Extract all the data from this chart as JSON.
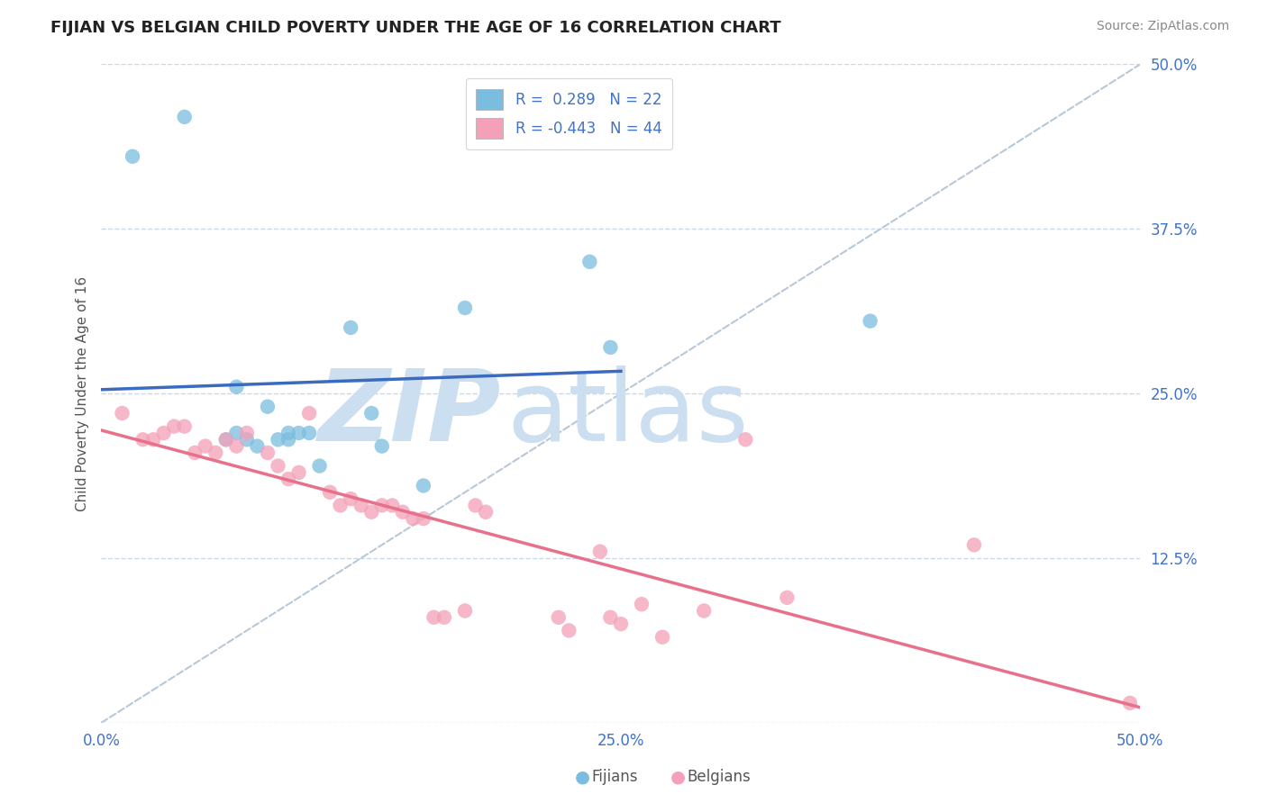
{
  "title": "FIJIAN VS BELGIAN CHILD POVERTY UNDER THE AGE OF 16 CORRELATION CHART",
  "source": "Source: ZipAtlas.com",
  "ylabel": "Child Poverty Under the Age of 16",
  "xlim": [
    0.0,
    0.5
  ],
  "ylim": [
    0.0,
    0.5
  ],
  "fijian_color": "#7bbde0",
  "belgian_color": "#f4a0b8",
  "fijian_line_color": "#3a6bbf",
  "belgian_line_color": "#e8708a",
  "dashed_line_color": "#b8c8d8",
  "watermark_zip_color": "#ccdff0",
  "watermark_atlas_color": "#ccdff0",
  "background_color": "#ffffff",
  "grid_color": "#c8d8e8",
  "tick_color": "#4472c4",
  "title_color": "#222222",
  "ylabel_color": "#555555",
  "source_color": "#888888",
  "legend_text_color": "#4472c4",
  "bottom_legend_color": "#555555",
  "title_fontsize": 13,
  "axis_label_fontsize": 11,
  "tick_fontsize": 12,
  "legend_fontsize": 12,
  "source_fontsize": 10,
  "fijian_points": [
    [
      0.015,
      0.43
    ],
    [
      0.04,
      0.46
    ],
    [
      0.06,
      0.215
    ],
    [
      0.065,
      0.22
    ],
    [
      0.065,
      0.255
    ],
    [
      0.07,
      0.215
    ],
    [
      0.075,
      0.21
    ],
    [
      0.08,
      0.24
    ],
    [
      0.085,
      0.215
    ],
    [
      0.09,
      0.22
    ],
    [
      0.09,
      0.215
    ],
    [
      0.095,
      0.22
    ],
    [
      0.1,
      0.22
    ],
    [
      0.105,
      0.195
    ],
    [
      0.12,
      0.3
    ],
    [
      0.13,
      0.235
    ],
    [
      0.135,
      0.21
    ],
    [
      0.155,
      0.18
    ],
    [
      0.175,
      0.315
    ],
    [
      0.235,
      0.35
    ],
    [
      0.245,
      0.285
    ],
    [
      0.37,
      0.305
    ]
  ],
  "belgian_points": [
    [
      0.01,
      0.235
    ],
    [
      0.02,
      0.215
    ],
    [
      0.025,
      0.215
    ],
    [
      0.03,
      0.22
    ],
    [
      0.035,
      0.225
    ],
    [
      0.04,
      0.225
    ],
    [
      0.045,
      0.205
    ],
    [
      0.05,
      0.21
    ],
    [
      0.055,
      0.205
    ],
    [
      0.06,
      0.215
    ],
    [
      0.065,
      0.21
    ],
    [
      0.07,
      0.22
    ],
    [
      0.08,
      0.205
    ],
    [
      0.085,
      0.195
    ],
    [
      0.09,
      0.185
    ],
    [
      0.095,
      0.19
    ],
    [
      0.1,
      0.235
    ],
    [
      0.11,
      0.175
    ],
    [
      0.115,
      0.165
    ],
    [
      0.12,
      0.17
    ],
    [
      0.125,
      0.165
    ],
    [
      0.13,
      0.16
    ],
    [
      0.135,
      0.165
    ],
    [
      0.14,
      0.165
    ],
    [
      0.145,
      0.16
    ],
    [
      0.15,
      0.155
    ],
    [
      0.155,
      0.155
    ],
    [
      0.16,
      0.08
    ],
    [
      0.165,
      0.08
    ],
    [
      0.175,
      0.085
    ],
    [
      0.18,
      0.165
    ],
    [
      0.185,
      0.16
    ],
    [
      0.22,
      0.08
    ],
    [
      0.225,
      0.07
    ],
    [
      0.24,
      0.13
    ],
    [
      0.245,
      0.08
    ],
    [
      0.25,
      0.075
    ],
    [
      0.26,
      0.09
    ],
    [
      0.27,
      0.065
    ],
    [
      0.29,
      0.085
    ],
    [
      0.31,
      0.215
    ],
    [
      0.33,
      0.095
    ],
    [
      0.42,
      0.135
    ],
    [
      0.495,
      0.015
    ]
  ]
}
